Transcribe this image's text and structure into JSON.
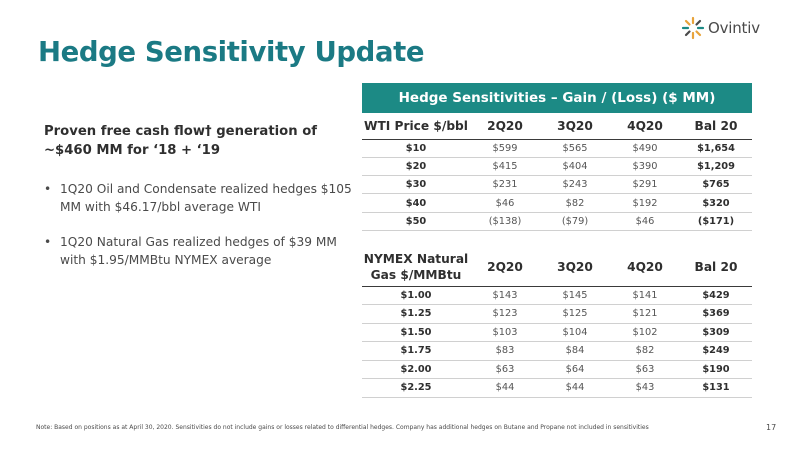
{
  "brand": {
    "logo_text": "Ovintiv",
    "logo_colors": [
      "#e8a33a",
      "#1c8a85",
      "#4a4a4a"
    ]
  },
  "slide": {
    "title": "Hedge Sensitivity Update",
    "headline": "Proven free cash flow† generation of ~$460 MM for ‘18 + ‘19",
    "bullets": [
      "1Q20 Oil and Condensate realized hedges $105 MM with $46.17/bbl average WTI",
      "1Q20 Natural Gas realized hedges of $39 MM with $1.95/MMBtu NYMEX average"
    ],
    "banner": "Hedge Sensitivities –  Gain / (Loss)  ($ MM)",
    "footnote": "Note: Based on positions as at April 30, 2020. Sensitivities do not include gains or losses related to differential hedges. Company has additional hedges on Butane and Propane not included in sensitivities",
    "page_number": "17",
    "accent_color": "#1c8a85",
    "title_color": "#1b7a84"
  },
  "wti_table": {
    "headers": [
      "WTI Price $/bbl",
      "2Q20",
      "3Q20",
      "4Q20",
      "Bal 20"
    ],
    "rows": [
      [
        "$10",
        "$599",
        "$565",
        "$490",
        "$1,654"
      ],
      [
        "$20",
        "$415",
        "$404",
        "$390",
        "$1,209"
      ],
      [
        "$30",
        "$231",
        "$243",
        "$291",
        "$765"
      ],
      [
        "$40",
        "$46",
        "$82",
        "$192",
        "$320"
      ],
      [
        "$50",
        "($138)",
        "($79)",
        "$46",
        "($171)"
      ]
    ]
  },
  "gas_table": {
    "headers": [
      "NYMEX Natural Gas $/MMBtu",
      "2Q20",
      "3Q20",
      "4Q20",
      "Bal 20"
    ],
    "rows": [
      [
        "$1.00",
        "$143",
        "$145",
        "$141",
        "$429"
      ],
      [
        "$1.25",
        "$123",
        "$125",
        "$121",
        "$369"
      ],
      [
        "$1.50",
        "$103",
        "$104",
        "$102",
        "$309"
      ],
      [
        "$1.75",
        "$83",
        "$84",
        "$82",
        "$249"
      ],
      [
        "$2.00",
        "$63",
        "$64",
        "$63",
        "$190"
      ],
      [
        "$2.25",
        "$44",
        "$44",
        "$43",
        "$131"
      ]
    ]
  }
}
